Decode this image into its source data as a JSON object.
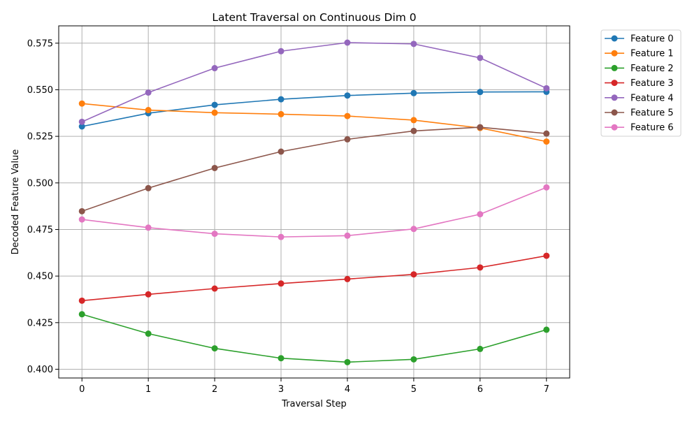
{
  "chart_data": {
    "type": "line",
    "title": "Latent Traversal on Continuous Dim 0",
    "xlabel": "Traversal Step",
    "ylabel": "Decoded Feature Value",
    "x": [
      0,
      1,
      2,
      3,
      4,
      5,
      6,
      7
    ],
    "xticks": [
      0,
      1,
      2,
      3,
      4,
      5,
      6,
      7
    ],
    "yticks": [
      0.4,
      0.425,
      0.45,
      0.475,
      0.5,
      0.525,
      0.55,
      0.575
    ],
    "ytick_labels": [
      "0.400",
      "0.425",
      "0.450",
      "0.475",
      "0.500",
      "0.525",
      "0.550",
      "0.575"
    ],
    "xlim": [
      -0.35,
      7.35
    ],
    "ylim": [
      0.3953,
      0.5843
    ],
    "grid": true,
    "legend_position": "outside top-right",
    "marker": "circle",
    "series": [
      {
        "name": "Feature 0",
        "color": "#1f77b4",
        "values": [
          0.5303,
          0.5374,
          0.5419,
          0.5449,
          0.5469,
          0.5482,
          0.5488,
          0.5489
        ]
      },
      {
        "name": "Feature 1",
        "color": "#ff7f0e",
        "values": [
          0.5426,
          0.5391,
          0.5377,
          0.5369,
          0.5359,
          0.5337,
          0.5295,
          0.5222
        ]
      },
      {
        "name": "Feature 2",
        "color": "#2ca02c",
        "values": [
          0.4295,
          0.4191,
          0.4112,
          0.4059,
          0.4038,
          0.4053,
          0.4109,
          0.4212
        ]
      },
      {
        "name": "Feature 3",
        "color": "#d62728",
        "values": [
          0.4368,
          0.4402,
          0.4433,
          0.446,
          0.4484,
          0.4509,
          0.4546,
          0.4609
        ]
      },
      {
        "name": "Feature 4",
        "color": "#9467bd",
        "values": [
          0.5328,
          0.5485,
          0.5616,
          0.5707,
          0.5753,
          0.5746,
          0.5671,
          0.5508
        ]
      },
      {
        "name": "Feature 5",
        "color": "#8c564b",
        "values": [
          0.4848,
          0.4972,
          0.508,
          0.5168,
          0.5234,
          0.5279,
          0.5299,
          0.5265
        ]
      },
      {
        "name": "Feature 6",
        "color": "#e377c2",
        "values": [
          0.4804,
          0.476,
          0.4727,
          0.471,
          0.4717,
          0.4753,
          0.4832,
          0.4976
        ]
      }
    ]
  }
}
